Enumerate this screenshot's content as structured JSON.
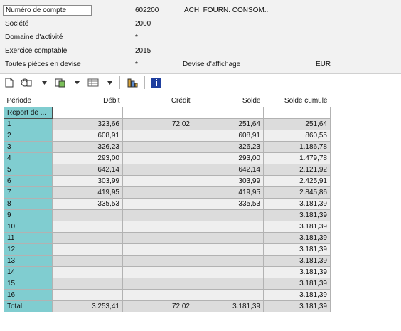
{
  "header": {
    "account_label": "Numéro de compte",
    "account_value": "602200",
    "account_desc": "ACH. FOURN. CONSOM..",
    "company_label": "Société",
    "company_value": "2000",
    "activity_label": "Domaine d'activité",
    "activity_value": "*",
    "fiscal_label": "Exercice comptable",
    "fiscal_value": "2015",
    "all_docs_label": "Toutes pièces en devise",
    "all_docs_value": "*",
    "display_currency_label": "Devise d'affichage",
    "display_currency_value": "EUR"
  },
  "toolbar": {
    "icons": [
      "document-icon",
      "refresh-documents-icon",
      "export-icon",
      "layout-icon",
      "chart-icon",
      "info-icon"
    ]
  },
  "table": {
    "columns": [
      "Période",
      "Débit",
      "Crédit",
      "Solde",
      "Solde cumulé"
    ],
    "rows": [
      [
        "Report de ...",
        "",
        "",
        "",
        ""
      ],
      [
        "1",
        "323,66",
        "72,02",
        "251,64",
        "251,64"
      ],
      [
        "2",
        "608,91",
        "",
        "608,91",
        "860,55"
      ],
      [
        "3",
        "326,23",
        "",
        "326,23",
        "1.186,78"
      ],
      [
        "4",
        "293,00",
        "",
        "293,00",
        "1.479,78"
      ],
      [
        "5",
        "642,14",
        "",
        "642,14",
        "2.121,92"
      ],
      [
        "6",
        "303,99",
        "",
        "303,99",
        "2.425,91"
      ],
      [
        "7",
        "419,95",
        "",
        "419,95",
        "2.845,86"
      ],
      [
        "8",
        "335,53",
        "",
        "335,53",
        "3.181,39"
      ],
      [
        "9",
        "",
        "",
        "",
        "3.181,39"
      ],
      [
        "10",
        "",
        "",
        "",
        "3.181,39"
      ],
      [
        "11",
        "",
        "",
        "",
        "3.181,39"
      ],
      [
        "12",
        "",
        "",
        "",
        "3.181,39"
      ],
      [
        "13",
        "",
        "",
        "",
        "3.181,39"
      ],
      [
        "14",
        "",
        "",
        "",
        "3.181,39"
      ],
      [
        "15",
        "",
        "",
        "",
        "3.181,39"
      ],
      [
        "16",
        "",
        "",
        "",
        "3.181,39"
      ],
      [
        "Total",
        "3.253,41",
        "72,02",
        "3.181,39",
        "3.181,39"
      ]
    ]
  },
  "colors": {
    "period_cell": "#80cdd0",
    "cell_gray": "#dcdcdc",
    "cell_light": "#efefef",
    "info_icon": "#1f3f9f"
  }
}
